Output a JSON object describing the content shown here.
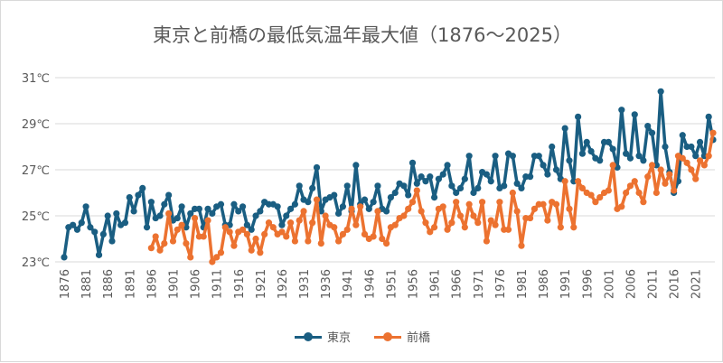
{
  "chart_data": {
    "type": "line",
    "title": "東京と前橋の最低気温年最大値（1876～2025）",
    "xlabel": "",
    "ylabel": "",
    "x_start": 1876,
    "x_end": 2025,
    "ylim": [
      23,
      31
    ],
    "y_ticks": [
      "23℃",
      "25℃",
      "27℃",
      "29℃",
      "31℃"
    ],
    "y_tick_values": [
      23,
      25,
      27,
      29,
      31
    ],
    "x_tick_step": 5,
    "grid": "horizontal",
    "legend": "bottom",
    "series": [
      {
        "name": "東京",
        "color": "#1a5e82",
        "start_year": 1876,
        "values": [
          23.2,
          24.5,
          24.6,
          24.4,
          24.7,
          25.4,
          24.5,
          24.3,
          23.3,
          24.2,
          25.0,
          23.9,
          25.1,
          24.6,
          24.7,
          25.8,
          25.2,
          25.9,
          26.2,
          24.5,
          25.6,
          24.9,
          25.0,
          25.5,
          25.9,
          24.8,
          24.9,
          25.4,
          24.5,
          25.1,
          25.3,
          25.3,
          24.5,
          25.3,
          25.1,
          25.4,
          25.5,
          24.6,
          24.6,
          25.5,
          25.2,
          25.4,
          24.6,
          24.4,
          25.0,
          25.2,
          25.6,
          25.5,
          25.5,
          25.4,
          24.6,
          25.0,
          25.3,
          25.5,
          26.3,
          25.7,
          25.6,
          26.2,
          27.1,
          25.2,
          25.7,
          25.8,
          25.9,
          25.1,
          25.4,
          26.3,
          25.2,
          27.2,
          25.5,
          25.7,
          25.3,
          25.6,
          26.3,
          25.3,
          25.2,
          25.8,
          26.0,
          26.4,
          26.3,
          25.9,
          27.3,
          26.4,
          26.7,
          26.5,
          26.7,
          25.8,
          26.6,
          26.8,
          27.2,
          26.3,
          26.0,
          26.2,
          26.6,
          27.6,
          26.0,
          26.2,
          26.9,
          26.8,
          26.5,
          27.6,
          26.2,
          26.3,
          27.7,
          27.6,
          26.4,
          26.2,
          26.7,
          26.7,
          27.6,
          27.6,
          27.2,
          26.8,
          28.0,
          27.0,
          26.6,
          28.8,
          27.4,
          26.5,
          29.3,
          27.7,
          28.2,
          27.8,
          27.5,
          27.4,
          28.2,
          28.2,
          27.9,
          27.1,
          29.6,
          27.7,
          27.5,
          29.4,
          27.6,
          27.4,
          28.9,
          28.6,
          27.2,
          30.4,
          28.0,
          26.9,
          26.0,
          26.5,
          28.5,
          28.0,
          28.0,
          27.6,
          28.2,
          27.6,
          29.3,
          28.3
        ]
      },
      {
        "name": "前橋",
        "color": "#ec7230",
        "start_year": 1896,
        "values": [
          23.6,
          24.1,
          23.5,
          23.8,
          25.1,
          23.9,
          24.4,
          24.6,
          23.8,
          23.2,
          24.9,
          24.1,
          24.1,
          24.8,
          23.0,
          23.2,
          23.4,
          24.5,
          24.3,
          23.7,
          24.3,
          24.4,
          24.2,
          23.5,
          24.0,
          23.4,
          24.2,
          24.7,
          24.5,
          24.2,
          24.3,
          24.1,
          24.7,
          23.9,
          24.8,
          25.2,
          23.9,
          24.7,
          25.7,
          23.8,
          25.0,
          24.6,
          24.5,
          23.9,
          24.2,
          24.4,
          25.3,
          24.6,
          25.4,
          24.2,
          24.0,
          24.1,
          25.2,
          24.0,
          23.8,
          24.5,
          24.6,
          24.9,
          25.0,
          25.3,
          25.6,
          26.1,
          25.2,
          24.7,
          24.3,
          24.5,
          25.3,
          25.4,
          24.4,
          24.7,
          25.6,
          25.0,
          24.5,
          25.5,
          25.0,
          24.7,
          25.6,
          23.9,
          24.8,
          24.6,
          25.6,
          24.4,
          24.4,
          26.0,
          25.2,
          23.7,
          24.9,
          24.9,
          25.3,
          25.5,
          25.5,
          24.8,
          25.6,
          25.5,
          24.5,
          26.5,
          25.3,
          24.5,
          26.5,
          26.2,
          26.0,
          25.9,
          25.6,
          25.8,
          26.0,
          26.1,
          27.2,
          25.3,
          25.4,
          26.0,
          26.3,
          26.5,
          26.0,
          25.6,
          26.7,
          27.2,
          26.0,
          27.0,
          26.4,
          26.8,
          26.1,
          27.6,
          27.5,
          27.3,
          27.0,
          26.6,
          27.4,
          27.2,
          27.6,
          28.6
        ]
      }
    ]
  }
}
